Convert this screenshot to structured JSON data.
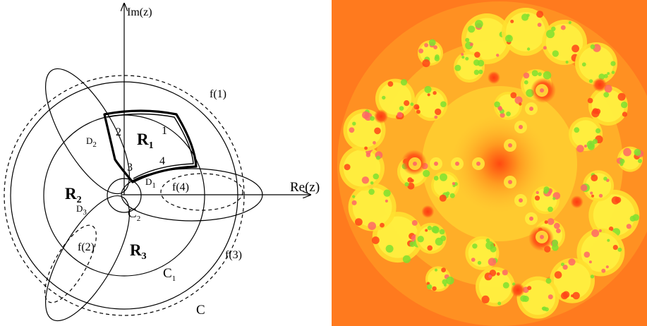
{
  "figure": {
    "axes": {
      "real_label": "Re(z)",
      "imag_label": "Im(z)"
    },
    "regions": [
      {
        "letter": "R",
        "sub": "1"
      },
      {
        "letter": "R",
        "sub": "2"
      },
      {
        "letter": "R",
        "sub": "3"
      }
    ],
    "circles": {
      "C": "C",
      "C1_letter": "C",
      "C1_sub": "1",
      "C2_letter": "C",
      "C2_sub": "2"
    },
    "discs": [
      {
        "letter": "D",
        "sub": "1"
      },
      {
        "letter": "D",
        "sub": "2"
      },
      {
        "letter": "D",
        "sub": "3"
      }
    ],
    "images": {
      "f1": "f(1)",
      "f2": "f(2)",
      "f3": "f(3)",
      "f4": "f(4)"
    },
    "boundary_numbers": [
      "1",
      "2",
      "3",
      "4"
    ],
    "fractal": {
      "palette": {
        "background": "#ff7a1e",
        "mid": "#ffb020",
        "light": "#ffe030",
        "yellow": "#fff040",
        "green": "#7ee030",
        "red": "#ff4418",
        "pink": "#ff6666"
      }
    }
  }
}
